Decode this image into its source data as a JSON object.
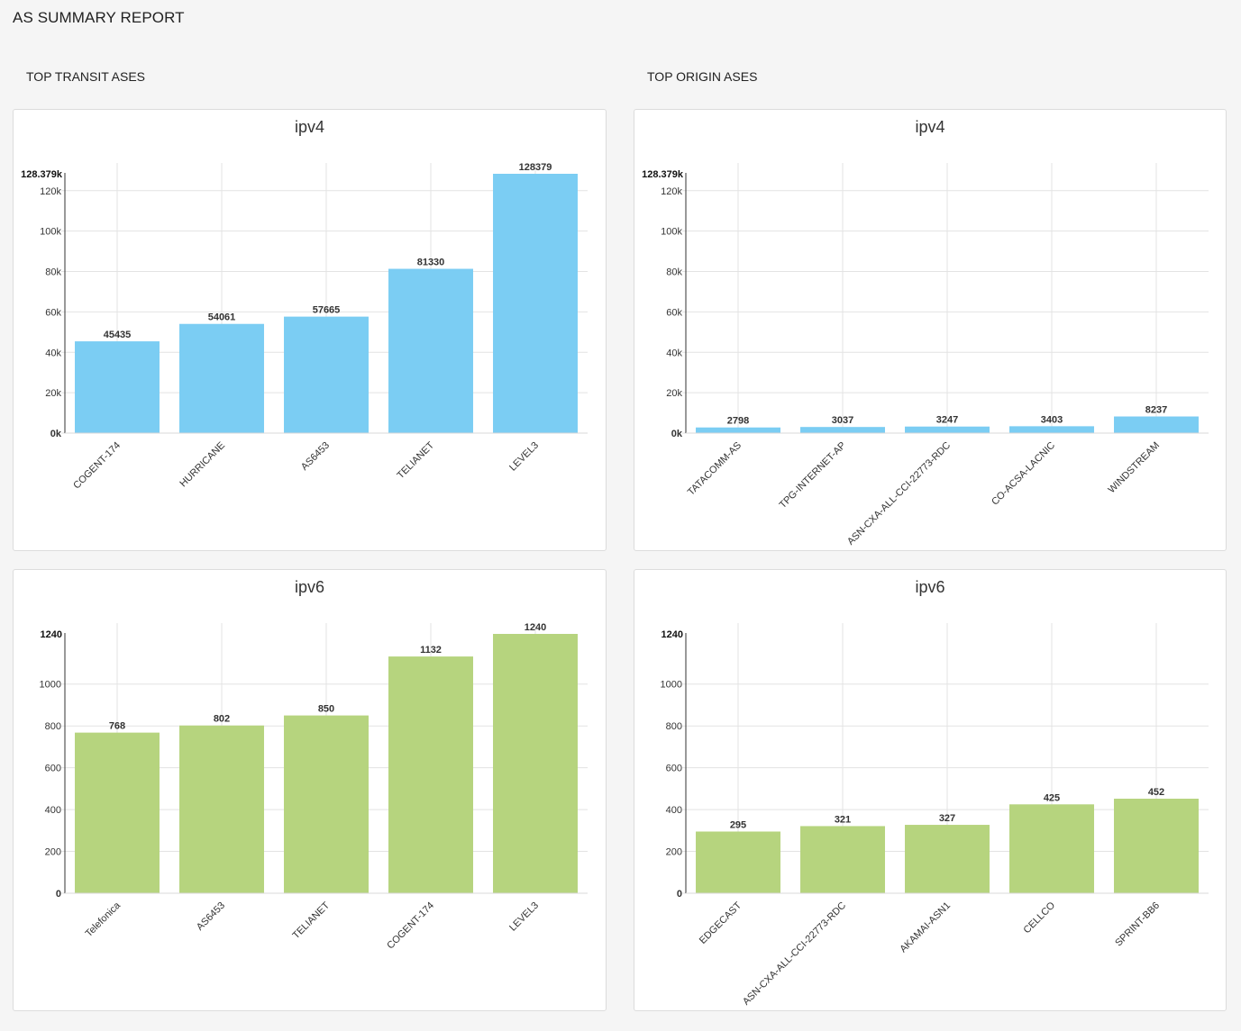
{
  "report_title": "AS SUMMARY REPORT",
  "sections": {
    "transit_title": "TOP TRANSIT ASES",
    "origin_title": "TOP ORIGIN ASES"
  },
  "colors": {
    "ipv4_bar": "#7bcdf3",
    "ipv6_bar": "#b6d47e"
  },
  "chart_data": [
    {
      "id": "transit-ipv4",
      "type": "bar",
      "title": "ipv4",
      "categories": [
        "COGENT-174",
        "HURRICANE",
        "AS6453",
        "TELIANET",
        "LEVEL3"
      ],
      "values": [
        45435,
        54061,
        57665,
        81330,
        128379
      ],
      "value_labels": [
        "45435",
        "54061",
        "57665",
        "81330",
        "128379"
      ],
      "ylim": [
        0,
        128379
      ],
      "yticks": [
        0,
        20000,
        40000,
        60000,
        80000,
        100000,
        120000
      ],
      "ytick_labels": [
        "0k",
        "20k",
        "40k",
        "60k",
        "80k",
        "100k",
        "120k"
      ],
      "ymax_label": "128.379k",
      "color": "#7bcdf3",
      "grid": true
    },
    {
      "id": "origin-ipv4",
      "type": "bar",
      "title": "ipv4",
      "categories": [
        "TATACOMM-AS",
        "TPG-INTERNET-AP",
        "ASN-CXA-ALL-CCI-22773-RDC",
        "CO-ACSA-LACNIC",
        "WINDSTREAM"
      ],
      "values": [
        2798,
        3037,
        3247,
        3403,
        8237
      ],
      "value_labels": [
        "2798",
        "3037",
        "3247",
        "3403",
        "8237"
      ],
      "ylim": [
        0,
        128379
      ],
      "yticks": [
        0,
        20000,
        40000,
        60000,
        80000,
        100000,
        120000
      ],
      "ytick_labels": [
        "0k",
        "20k",
        "40k",
        "60k",
        "80k",
        "100k",
        "120k"
      ],
      "ymax_label": "128.379k",
      "color": "#7bcdf3",
      "grid": true
    },
    {
      "id": "transit-ipv6",
      "type": "bar",
      "title": "ipv6",
      "categories": [
        "Telefonica",
        "AS6453",
        "TELIANET",
        "COGENT-174",
        "LEVEL3"
      ],
      "values": [
        768,
        802,
        850,
        1132,
        1240
      ],
      "value_labels": [
        "768",
        "802",
        "850",
        "1132",
        "1240"
      ],
      "ylim": [
        0,
        1240
      ],
      "yticks": [
        0,
        200,
        400,
        600,
        800,
        1000
      ],
      "ytick_labels": [
        "0",
        "200",
        "400",
        "600",
        "800",
        "1000"
      ],
      "ymax_label": "1240",
      "color": "#b6d47e",
      "grid": true
    },
    {
      "id": "origin-ipv6",
      "type": "bar",
      "title": "ipv6",
      "categories": [
        "EDGECAST",
        "ASN-CXA-ALL-CCI-22773-RDC",
        "AKAMAI-ASN1",
        "CELLCO",
        "SPRINT-BB6"
      ],
      "values": [
        295,
        321,
        327,
        425,
        452
      ],
      "value_labels": [
        "295",
        "321",
        "327",
        "425",
        "452"
      ],
      "ylim": [
        0,
        1240
      ],
      "yticks": [
        0,
        200,
        400,
        600,
        800,
        1000
      ],
      "ytick_labels": [
        "0",
        "200",
        "400",
        "600",
        "800",
        "1000"
      ],
      "ymax_label": "1240",
      "color": "#b6d47e",
      "grid": true
    }
  ]
}
